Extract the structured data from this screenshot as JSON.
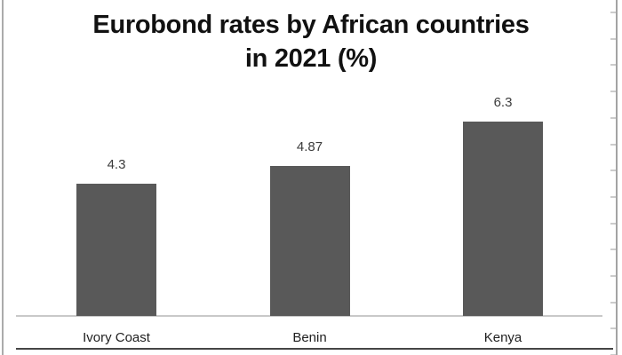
{
  "title": {
    "line1": "Eurobond rates by African countries",
    "line2": "in 2021 (%)"
  },
  "chart_data": {
    "type": "bar",
    "title": "Eurobond rates by African countries in 2021 (%)",
    "categories": [
      "Ivory Coast",
      "Benin",
      "Kenya"
    ],
    "values": [
      4.3,
      4.87,
      6.3
    ],
    "value_labels": [
      "4.3",
      "4.87",
      "6.3"
    ],
    "xlabel": "",
    "ylabel": "",
    "ylim": [
      0,
      7
    ],
    "grid": false,
    "legend": false,
    "data_labels": true,
    "bar_color": "#595959",
    "axis_line_color": "#c9c9c9",
    "title_color": "#111111"
  }
}
